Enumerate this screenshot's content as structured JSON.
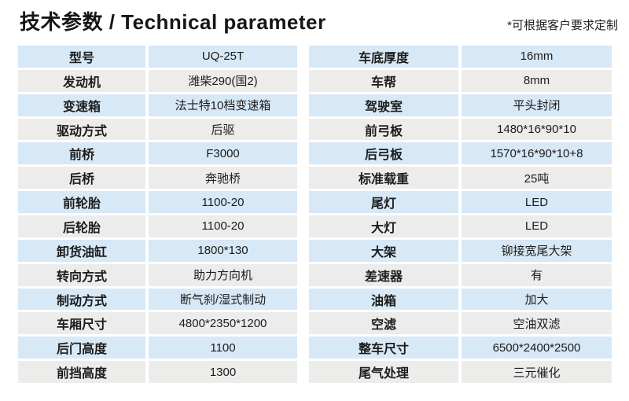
{
  "header": {
    "title": "技术参数 / Technical parameter",
    "note": "*可根据客户要求定制"
  },
  "colors": {
    "row_blue": "#d7e8f6",
    "row_gray": "#ececeb",
    "text": "#1c1c1c",
    "background": "#ffffff"
  },
  "table_left": {
    "rows": [
      {
        "label": "型号",
        "value": "UQ-25T"
      },
      {
        "label": "发动机",
        "value": "潍柴290(国2)"
      },
      {
        "label": "变速箱",
        "value": "法士特10档变速箱"
      },
      {
        "label": "驱动方式",
        "value": "后驱"
      },
      {
        "label": "前桥",
        "value": "F3000"
      },
      {
        "label": "后桥",
        "value": "奔驰桥"
      },
      {
        "label": "前轮胎",
        "value": "1100-20"
      },
      {
        "label": "后轮胎",
        "value": "1100-20"
      },
      {
        "label": "卸货油缸",
        "value": "1800*130"
      },
      {
        "label": "转向方式",
        "value": "助力方向机"
      },
      {
        "label": "制动方式",
        "value": "断气刹/湿式制动"
      },
      {
        "label": "车厢尺寸",
        "value": "4800*2350*1200"
      },
      {
        "label": "后门高度",
        "value": "1100"
      },
      {
        "label": "前挡高度",
        "value": "1300"
      }
    ]
  },
  "table_right": {
    "rows": [
      {
        "label": "车底厚度",
        "value": "16mm"
      },
      {
        "label": "车帮",
        "value": "8mm"
      },
      {
        "label": "驾驶室",
        "value": "平头封闭"
      },
      {
        "label": "前弓板",
        "value": "1480*16*90*10"
      },
      {
        "label": "后弓板",
        "value": "1570*16*90*10+8"
      },
      {
        "label": "标准载重",
        "value": "25吨"
      },
      {
        "label": "尾灯",
        "value": "LED"
      },
      {
        "label": "大灯",
        "value": "LED"
      },
      {
        "label": "大架",
        "value": "铆接宽尾大架"
      },
      {
        "label": "差速器",
        "value": "有"
      },
      {
        "label": "油箱",
        "value": "加大"
      },
      {
        "label": "空滤",
        "value": "空油双滤"
      },
      {
        "label": "整车尺寸",
        "value": "6500*2400*2500"
      },
      {
        "label": "尾气处理",
        "value": "三元催化"
      }
    ]
  }
}
